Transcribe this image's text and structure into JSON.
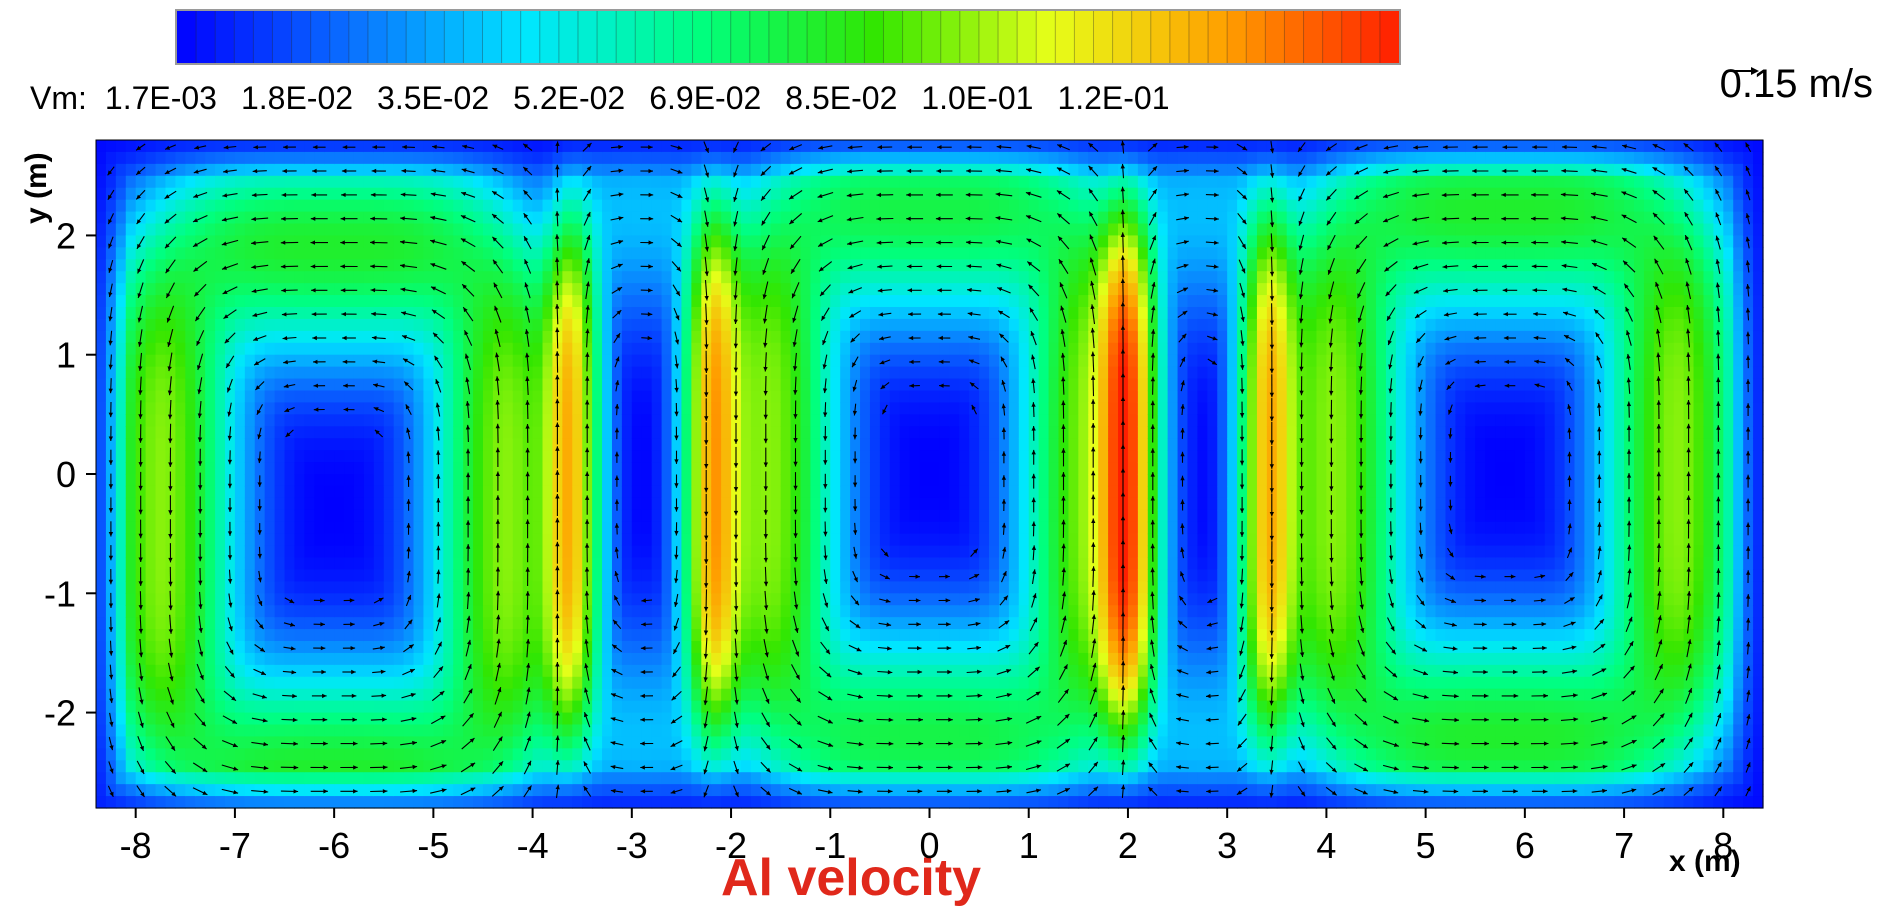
{
  "chart_data": {
    "type": "heatmap",
    "subtype": "contour-with-vector-field",
    "title": "Al velocity",
    "xlabel": "x (m)",
    "ylabel": "y (m)",
    "xlim": [
      -8.4,
      8.4
    ],
    "ylim": [
      -2.8,
      2.8
    ],
    "x_ticks": [
      "-8",
      "-7",
      "-6",
      "-5",
      "-4",
      "-3",
      "-2",
      "-1",
      "0",
      "1",
      "2",
      "3",
      "4",
      "5",
      "6",
      "7",
      "8"
    ],
    "y_ticks": [
      "2",
      "1",
      "0",
      "-1",
      "-2"
    ],
    "grid": false,
    "colorbar": {
      "variable": "Vm:",
      "labels": [
        "1.7E-03",
        "1.8E-02",
        "3.5E-02",
        "5.2E-02",
        "6.9E-02",
        "8.5E-02",
        "1.0E-01",
        "1.2E-01"
      ],
      "min": 0.0017,
      "max": 0.135,
      "levels": 64,
      "colors": [
        "#0000ff",
        "#0a70ff",
        "#00e6ff",
        "#00ff7f",
        "#32e600",
        "#e6ff19",
        "#ffa000",
        "#ff1e00"
      ],
      "placement": "top"
    },
    "reference_vector": {
      "label": "0.15 m/s",
      "magnitude": 0.15
    },
    "vortices": [
      {
        "x": -6.0,
        "y": -0.4,
        "rotation": "clockwise"
      },
      {
        "x": -3.0,
        "y": -0.1,
        "rotation": "counterclockwise"
      },
      {
        "x": 0.0,
        "y": 0.0,
        "rotation": "clockwise"
      },
      {
        "x": 2.7,
        "y": 0.1,
        "rotation": "counterclockwise"
      },
      {
        "x": 5.8,
        "y": 0.0,
        "rotation": "clockwise"
      }
    ],
    "peak_regions": [
      {
        "x": -4.0,
        "y": 0.9,
        "value": 0.12
      },
      {
        "x": -1.4,
        "y": -0.9,
        "value": 0.12
      },
      {
        "x": 1.5,
        "y": 0.9,
        "value": 0.12
      },
      {
        "x": 4.0,
        "y": -0.8,
        "value": 0.13
      },
      {
        "x": -5.8,
        "y": 2.3,
        "value": 0.1
      },
      {
        "x": 5.6,
        "y": 2.2,
        "value": 0.11
      },
      {
        "x": -5.8,
        "y": -2.2,
        "value": 0.1
      },
      {
        "x": 5.5,
        "y": -2.3,
        "value": 0.12
      }
    ]
  }
}
